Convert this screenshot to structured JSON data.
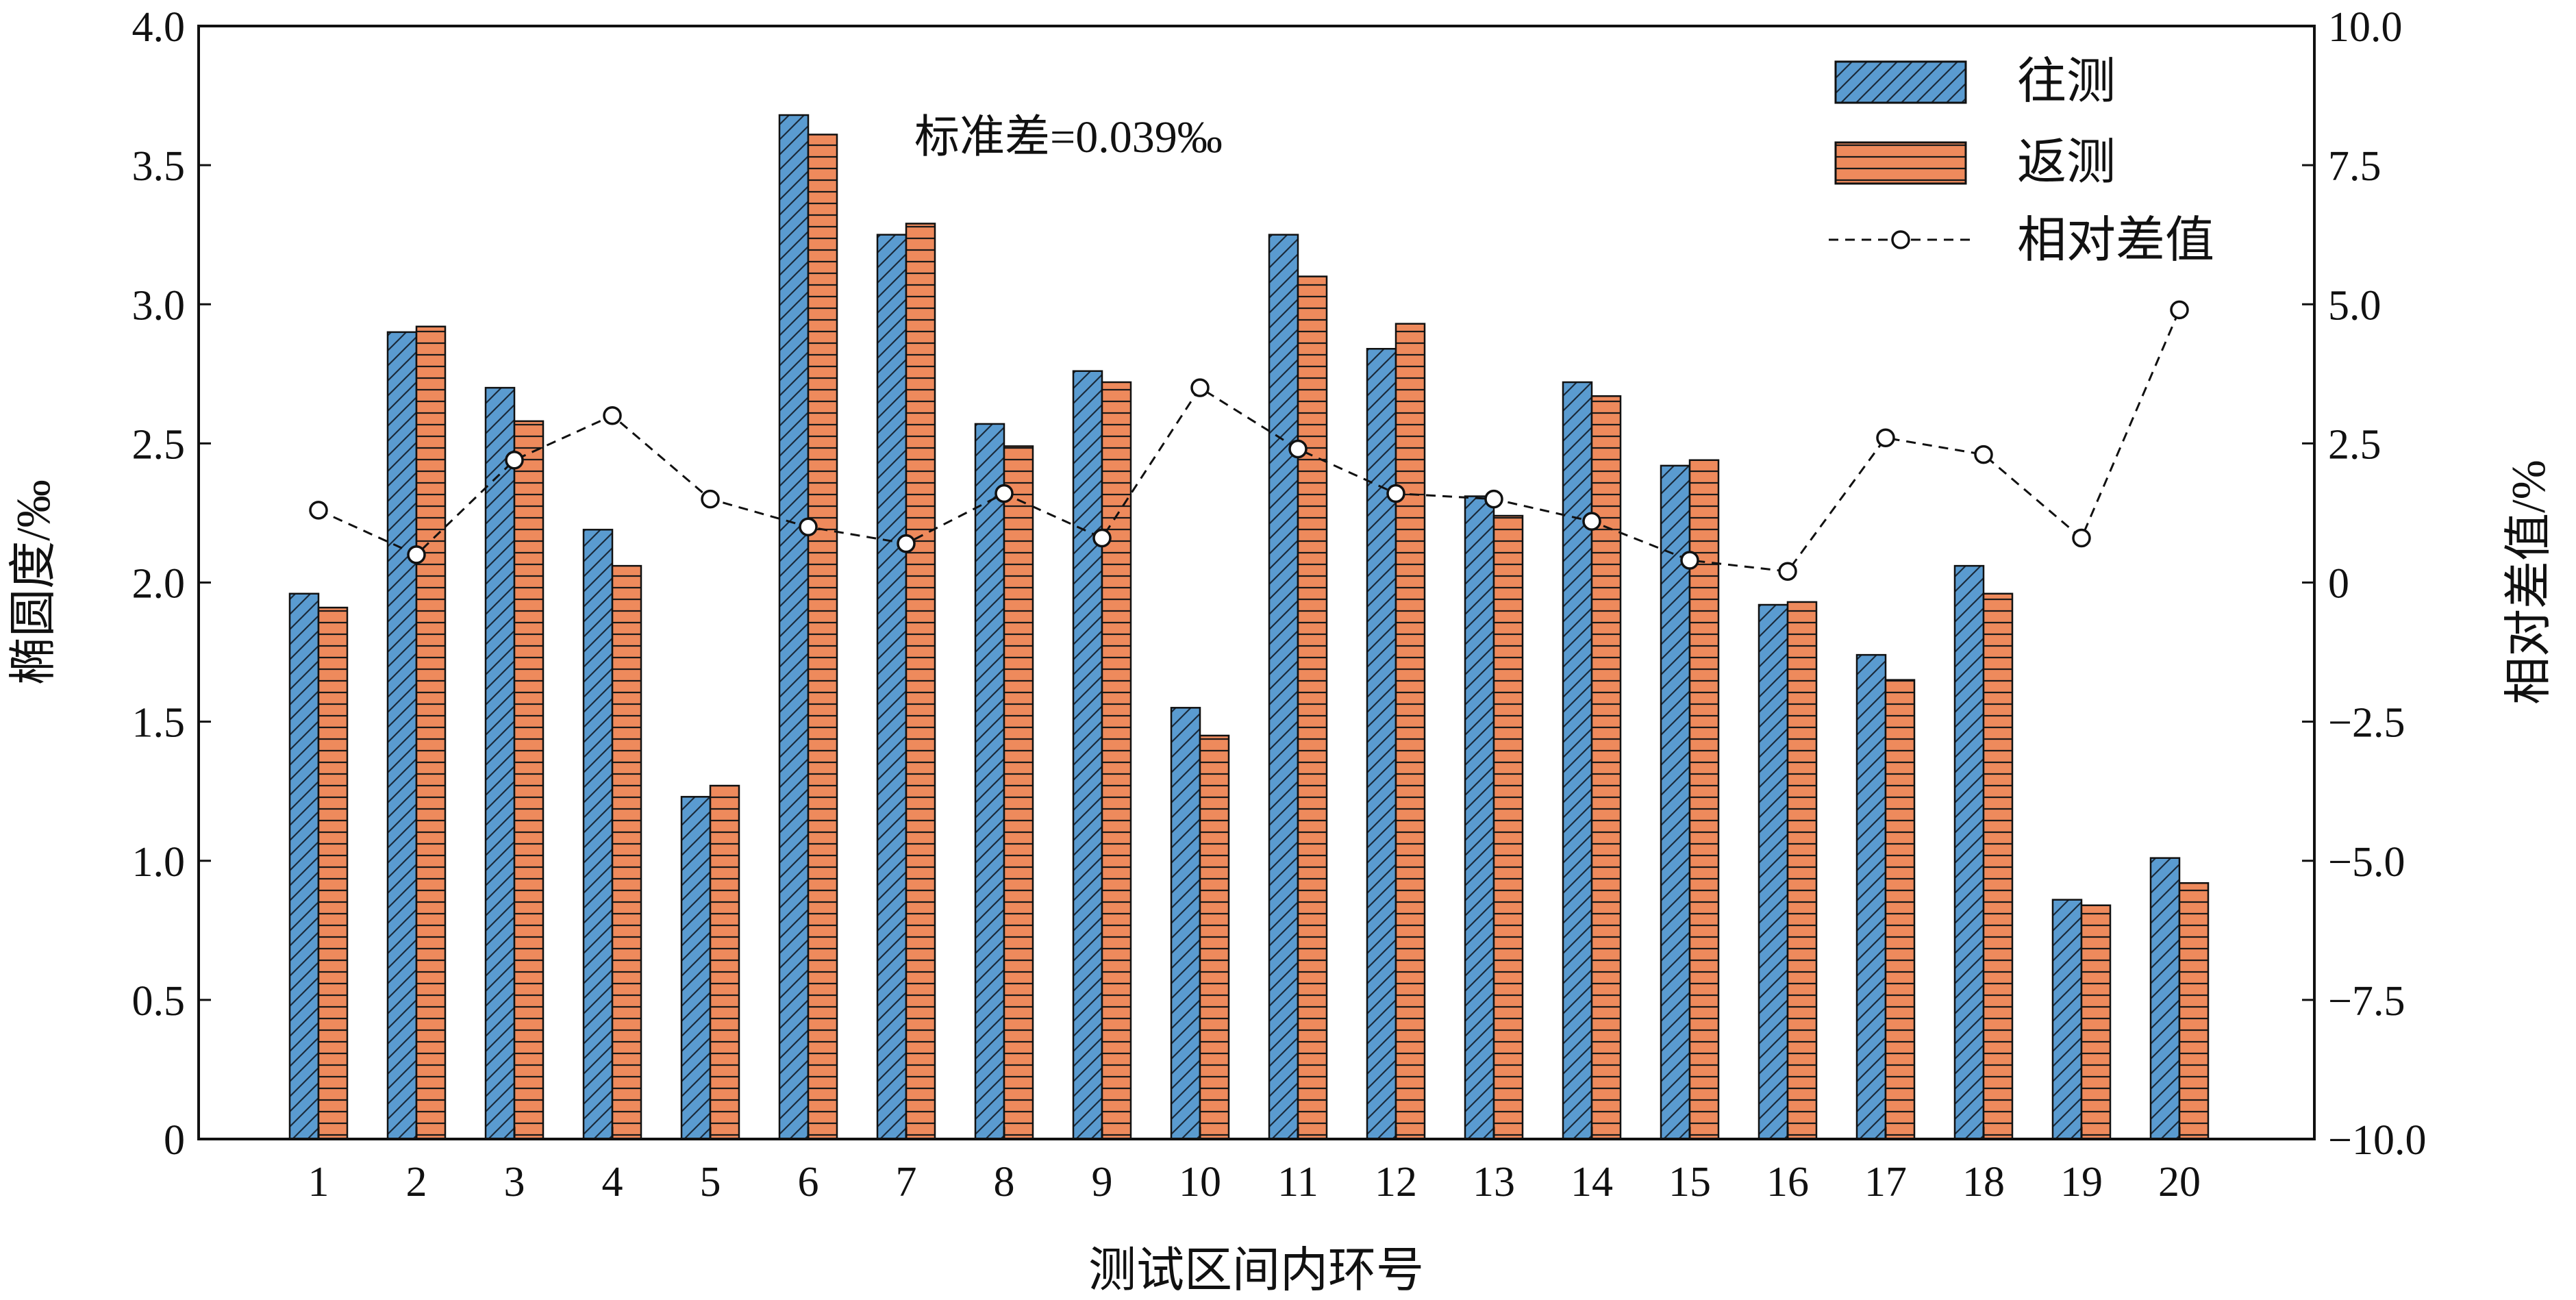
{
  "chart_data": {
    "type": "bar",
    "categories": [
      "1",
      "2",
      "3",
      "4",
      "5",
      "6",
      "7",
      "8",
      "9",
      "10",
      "11",
      "12",
      "13",
      "14",
      "15",
      "16",
      "17",
      "18",
      "19",
      "20"
    ],
    "series": [
      {
        "name": "往测",
        "axis": "left",
        "color": "#5a9bd0",
        "hatch": "diagonal",
        "values": [
          1.96,
          2.9,
          2.7,
          2.19,
          1.23,
          3.68,
          3.25,
          2.57,
          2.76,
          1.55,
          3.25,
          2.84,
          2.31,
          2.72,
          2.42,
          1.92,
          1.74,
          2.06,
          0.86,
          1.01
        ]
      },
      {
        "name": "返测",
        "axis": "left",
        "color": "#ee8a5c",
        "hatch": "horizontal",
        "values": [
          1.91,
          2.92,
          2.58,
          2.06,
          1.27,
          3.61,
          3.29,
          2.49,
          2.72,
          1.45,
          3.1,
          2.93,
          2.24,
          2.67,
          2.44,
          1.93,
          1.65,
          1.96,
          0.84,
          0.92
        ]
      },
      {
        "name": "相对差值",
        "type": "line",
        "axis": "right",
        "color": "#111111",
        "line_style": "dashed",
        "marker": "open-circle",
        "values": [
          1.3,
          0.5,
          2.2,
          3.0,
          1.5,
          1.0,
          0.7,
          1.6,
          0.8,
          3.5,
          2.4,
          1.6,
          1.5,
          1.1,
          0.4,
          0.2,
          2.6,
          2.3,
          0.8,
          4.9
        ]
      }
    ],
    "title": "",
    "annotation": "标准差=0.039‰",
    "xlabel": "测试区间内环号",
    "ylabel": "椭圆度/‰",
    "y2label": "相对差值/%",
    "ylim": [
      0,
      4.0
    ],
    "yticks": [
      0,
      0.5,
      1.0,
      1.5,
      2.0,
      2.5,
      3.0,
      3.5,
      4.0
    ],
    "ytick_labels": [
      "0",
      "0.5",
      "1.0",
      "1.5",
      "2.0",
      "2.5",
      "3.0",
      "3.5",
      "4.0"
    ],
    "y2lim": [
      -10.0,
      10.0
    ],
    "y2ticks": [
      -10.0,
      -7.5,
      -5.0,
      -2.5,
      0,
      2.5,
      5.0,
      7.5,
      10.0
    ],
    "y2tick_labels": [
      "−10.0",
      "−7.5",
      "−5.0",
      "−2.5",
      "0",
      "2.5",
      "5.0",
      "7.5",
      "10.0"
    ],
    "grid": false,
    "legend_position": "top-right"
  }
}
